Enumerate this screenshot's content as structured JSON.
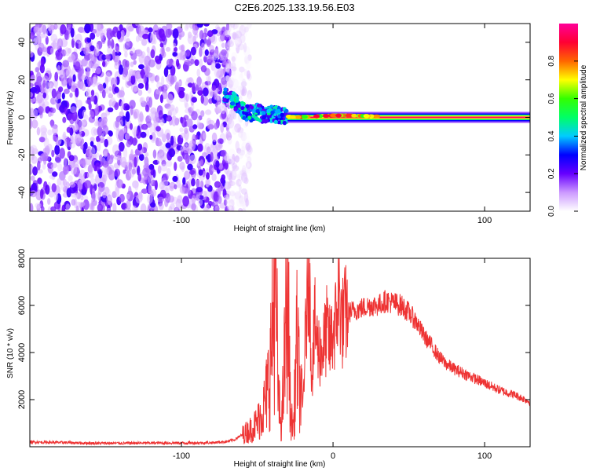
{
  "title": "C2E6.2025.133.19.56.E03",
  "chart_data": [
    {
      "type": "heatmap",
      "xlabel": "Height of straight line (km)",
      "ylabel": "Frequency (Hz)",
      "xlim": [
        -200,
        130
      ],
      "ylim": [
        -50,
        50
      ],
      "x_ticks": [
        -100,
        0,
        100
      ],
      "x_tick_labels": [
        "-100",
        "",
        "100"
      ],
      "y_ticks": [
        -40,
        -20,
        0,
        20,
        40
      ],
      "y_tick_labels": [
        "-40",
        "-20",
        "0",
        "20",
        "40"
      ],
      "grid": false,
      "colorbar": {
        "label": "Normalized spectral amplitude",
        "range": [
          0,
          1
        ],
        "ticks": [
          0.0,
          0.2,
          0.4,
          0.6,
          0.8
        ],
        "tick_labels": [
          "0.0",
          "0.2",
          "0.4",
          "0.6",
          "0.8"
        ],
        "colormap": [
          "#ffffff",
          "#cc99ff",
          "#6600ff",
          "#0000ff",
          "#00ccff",
          "#00ff66",
          "#33ff00",
          "#ffff00",
          "#ff6600",
          "#ff0033",
          "#ff0099"
        ]
      },
      "regions": [
        {
          "name": "noise",
          "x_range": [
            -200,
            -68
          ],
          "freq_range": [
            -50,
            50
          ],
          "amplitude": [
            0.05,
            0.25
          ]
        },
        {
          "name": "noise-fade",
          "x_range": [
            -70,
            -55
          ],
          "freq_range": [
            -50,
            50
          ],
          "amplitude": [
            0.0,
            0.08
          ]
        },
        {
          "name": "signal-onset",
          "x_range": [
            -72,
            -30
          ],
          "freq_range": [
            -8,
            14
          ],
          "amplitude": [
            0.2,
            0.5
          ]
        },
        {
          "name": "signal-line",
          "x_range": [
            -30,
            130
          ],
          "freq": 0,
          "amplitude": [
            0.7,
            1.0
          ]
        }
      ],
      "signal_track": [
        {
          "x": -72,
          "y": 12
        },
        {
          "x": -65,
          "y": 9
        },
        {
          "x": -60,
          "y": 4
        },
        {
          "x": -55,
          "y": 2
        },
        {
          "x": -50,
          "y": 3
        },
        {
          "x": -45,
          "y": 1
        },
        {
          "x": -40,
          "y": 2
        },
        {
          "x": -35,
          "y": 1
        },
        {
          "x": -25,
          "y": 0
        },
        {
          "x": 0,
          "y": 1
        },
        {
          "x": 10,
          "y": 1
        },
        {
          "x": 50,
          "y": 0
        },
        {
          "x": 130,
          "y": 0
        }
      ]
    },
    {
      "type": "line",
      "xlabel": "Height of straight line (km)",
      "ylabel": "SNR (10 * v/v)",
      "xlim": [
        -200,
        130
      ],
      "ylim": [
        0,
        8000
      ],
      "x_ticks": [
        -100,
        0,
        100
      ],
      "x_tick_labels": [
        "-100",
        "0",
        "100"
      ],
      "y_ticks": [
        2000,
        4000,
        6000,
        8000
      ],
      "y_tick_labels": [
        "2000",
        "4000",
        "6000",
        "8000"
      ],
      "grid": false,
      "color": "#ee3333",
      "series": [
        {
          "x": [
            -200,
            -180,
            -160,
            -140,
            -120,
            -100,
            -80,
            -70,
            -65,
            -60,
            -55,
            -50,
            -45,
            -42,
            -40,
            -38,
            -36,
            -34,
            -32,
            -30,
            -28,
            -26,
            -24,
            -22,
            -20,
            -18,
            -16,
            -14,
            -12,
            -10,
            -8,
            -6,
            -4,
            -2,
            0,
            2,
            4,
            6,
            8,
            10,
            15,
            20,
            25,
            30,
            35,
            40,
            45,
            50,
            55,
            60,
            65,
            70,
            75,
            80,
            90,
            100,
            110,
            120,
            130
          ],
          "y": [
            200,
            180,
            150,
            150,
            160,
            160,
            170,
            220,
            300,
            500,
            700,
            1000,
            1800,
            3000,
            4800,
            7600,
            2000,
            800,
            3600,
            7000,
            1200,
            900,
            4400,
            2600,
            1600,
            5000,
            8000,
            3000,
            5200,
            4200,
            4000,
            4300,
            5000,
            4300,
            4900,
            5300,
            6600,
            5200,
            5600,
            5700,
            5800,
            5900,
            6000,
            6000,
            6200,
            6100,
            6000,
            5700,
            5300,
            4700,
            4300,
            3800,
            3500,
            3300,
            3000,
            2700,
            2400,
            2200,
            1900
          ]
        }
      ]
    }
  ]
}
